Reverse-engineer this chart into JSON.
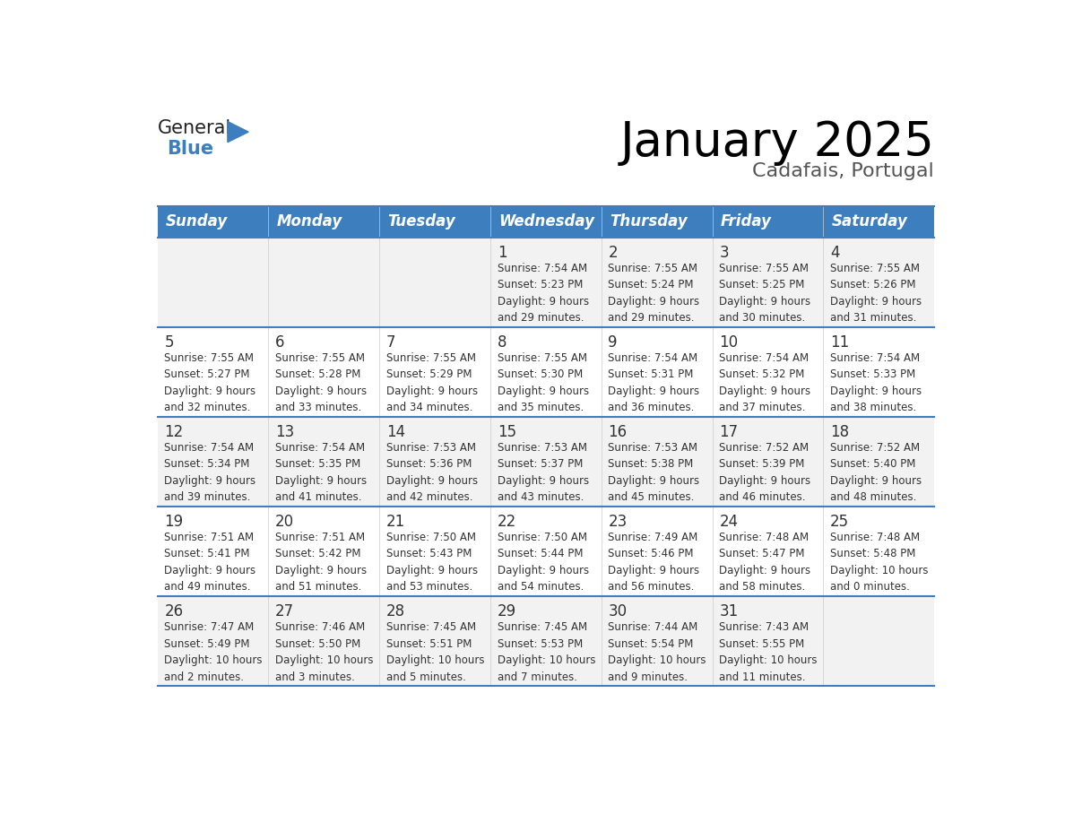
{
  "title": "January 2025",
  "subtitle": "Cadafais, Portugal",
  "days_of_week": [
    "Sunday",
    "Monday",
    "Tuesday",
    "Wednesday",
    "Thursday",
    "Friday",
    "Saturday"
  ],
  "header_bg": "#3d7ebf",
  "header_text": "#ffffff",
  "row_bg_even": "#f2f2f2",
  "row_bg_odd": "#ffffff",
  "separator_color": "#3d7ebf",
  "day_number_color": "#333333",
  "cell_text_color": "#333333",
  "calendar": [
    [
      {
        "day": null,
        "info": null
      },
      {
        "day": null,
        "info": null
      },
      {
        "day": null,
        "info": null
      },
      {
        "day": 1,
        "info": "Sunrise: 7:54 AM\nSunset: 5:23 PM\nDaylight: 9 hours\nand 29 minutes."
      },
      {
        "day": 2,
        "info": "Sunrise: 7:55 AM\nSunset: 5:24 PM\nDaylight: 9 hours\nand 29 minutes."
      },
      {
        "day": 3,
        "info": "Sunrise: 7:55 AM\nSunset: 5:25 PM\nDaylight: 9 hours\nand 30 minutes."
      },
      {
        "day": 4,
        "info": "Sunrise: 7:55 AM\nSunset: 5:26 PM\nDaylight: 9 hours\nand 31 minutes."
      }
    ],
    [
      {
        "day": 5,
        "info": "Sunrise: 7:55 AM\nSunset: 5:27 PM\nDaylight: 9 hours\nand 32 minutes."
      },
      {
        "day": 6,
        "info": "Sunrise: 7:55 AM\nSunset: 5:28 PM\nDaylight: 9 hours\nand 33 minutes."
      },
      {
        "day": 7,
        "info": "Sunrise: 7:55 AM\nSunset: 5:29 PM\nDaylight: 9 hours\nand 34 minutes."
      },
      {
        "day": 8,
        "info": "Sunrise: 7:55 AM\nSunset: 5:30 PM\nDaylight: 9 hours\nand 35 minutes."
      },
      {
        "day": 9,
        "info": "Sunrise: 7:54 AM\nSunset: 5:31 PM\nDaylight: 9 hours\nand 36 minutes."
      },
      {
        "day": 10,
        "info": "Sunrise: 7:54 AM\nSunset: 5:32 PM\nDaylight: 9 hours\nand 37 minutes."
      },
      {
        "day": 11,
        "info": "Sunrise: 7:54 AM\nSunset: 5:33 PM\nDaylight: 9 hours\nand 38 minutes."
      }
    ],
    [
      {
        "day": 12,
        "info": "Sunrise: 7:54 AM\nSunset: 5:34 PM\nDaylight: 9 hours\nand 39 minutes."
      },
      {
        "day": 13,
        "info": "Sunrise: 7:54 AM\nSunset: 5:35 PM\nDaylight: 9 hours\nand 41 minutes."
      },
      {
        "day": 14,
        "info": "Sunrise: 7:53 AM\nSunset: 5:36 PM\nDaylight: 9 hours\nand 42 minutes."
      },
      {
        "day": 15,
        "info": "Sunrise: 7:53 AM\nSunset: 5:37 PM\nDaylight: 9 hours\nand 43 minutes."
      },
      {
        "day": 16,
        "info": "Sunrise: 7:53 AM\nSunset: 5:38 PM\nDaylight: 9 hours\nand 45 minutes."
      },
      {
        "day": 17,
        "info": "Sunrise: 7:52 AM\nSunset: 5:39 PM\nDaylight: 9 hours\nand 46 minutes."
      },
      {
        "day": 18,
        "info": "Sunrise: 7:52 AM\nSunset: 5:40 PM\nDaylight: 9 hours\nand 48 minutes."
      }
    ],
    [
      {
        "day": 19,
        "info": "Sunrise: 7:51 AM\nSunset: 5:41 PM\nDaylight: 9 hours\nand 49 minutes."
      },
      {
        "day": 20,
        "info": "Sunrise: 7:51 AM\nSunset: 5:42 PM\nDaylight: 9 hours\nand 51 minutes."
      },
      {
        "day": 21,
        "info": "Sunrise: 7:50 AM\nSunset: 5:43 PM\nDaylight: 9 hours\nand 53 minutes."
      },
      {
        "day": 22,
        "info": "Sunrise: 7:50 AM\nSunset: 5:44 PM\nDaylight: 9 hours\nand 54 minutes."
      },
      {
        "day": 23,
        "info": "Sunrise: 7:49 AM\nSunset: 5:46 PM\nDaylight: 9 hours\nand 56 minutes."
      },
      {
        "day": 24,
        "info": "Sunrise: 7:48 AM\nSunset: 5:47 PM\nDaylight: 9 hours\nand 58 minutes."
      },
      {
        "day": 25,
        "info": "Sunrise: 7:48 AM\nSunset: 5:48 PM\nDaylight: 10 hours\nand 0 minutes."
      }
    ],
    [
      {
        "day": 26,
        "info": "Sunrise: 7:47 AM\nSunset: 5:49 PM\nDaylight: 10 hours\nand 2 minutes."
      },
      {
        "day": 27,
        "info": "Sunrise: 7:46 AM\nSunset: 5:50 PM\nDaylight: 10 hours\nand 3 minutes."
      },
      {
        "day": 28,
        "info": "Sunrise: 7:45 AM\nSunset: 5:51 PM\nDaylight: 10 hours\nand 5 minutes."
      },
      {
        "day": 29,
        "info": "Sunrise: 7:45 AM\nSunset: 5:53 PM\nDaylight: 10 hours\nand 7 minutes."
      },
      {
        "day": 30,
        "info": "Sunrise: 7:44 AM\nSunset: 5:54 PM\nDaylight: 10 hours\nand 9 minutes."
      },
      {
        "day": 31,
        "info": "Sunrise: 7:43 AM\nSunset: 5:55 PM\nDaylight: 10 hours\nand 11 minutes."
      },
      {
        "day": null,
        "info": null
      }
    ]
  ],
  "logo_general_color": "#222222",
  "logo_blue_color": "#3d7ebf"
}
